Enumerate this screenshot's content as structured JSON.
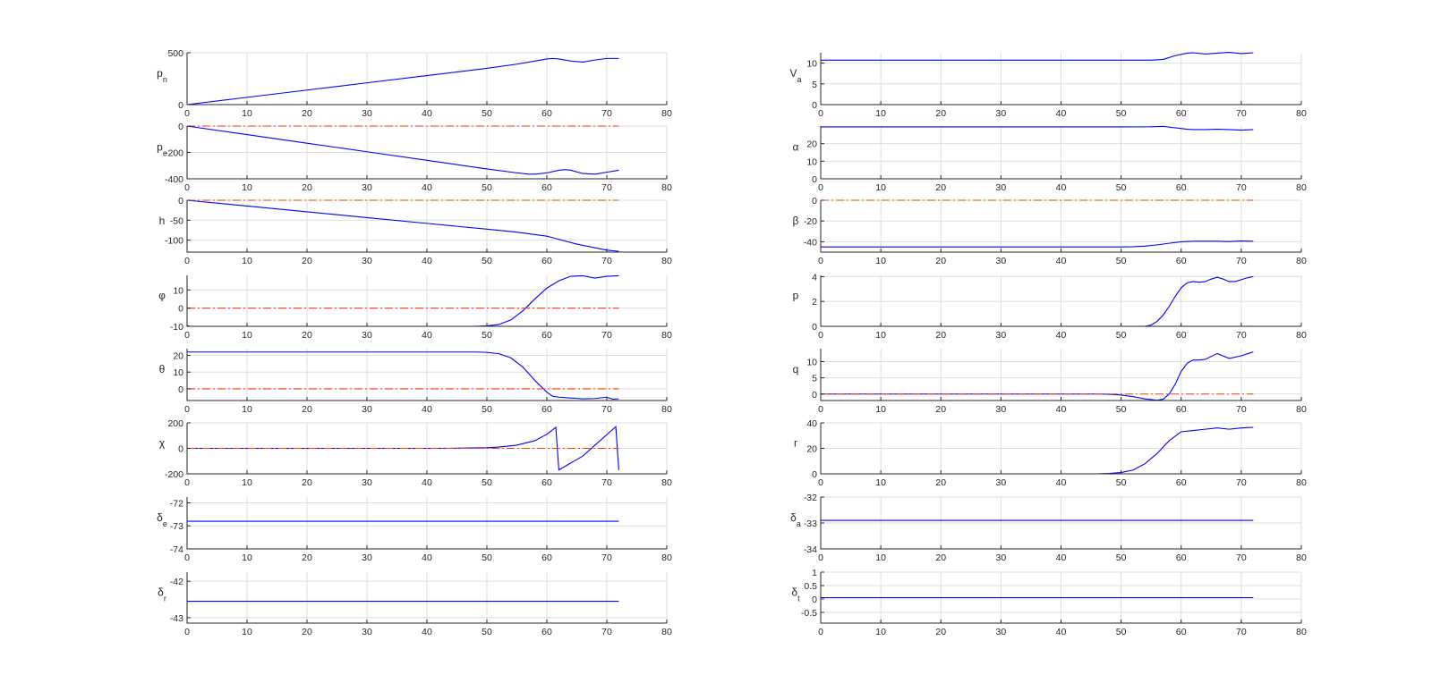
{
  "figure": {
    "background": "#ffffff"
  },
  "style": {
    "actual_color": "#0000ff",
    "commanded_color": "#ff3b00",
    "grid_color": "#dedede"
  },
  "chart_data": [
    {
      "type": "line",
      "ylabel": {
        "base": "p",
        "sub": "n"
      },
      "xlim": [
        0,
        80
      ],
      "ylim": [
        0,
        500
      ],
      "xticks": [
        0,
        10,
        20,
        30,
        40,
        50,
        60,
        70,
        80
      ],
      "yticks": [
        0,
        500
      ],
      "grid": true,
      "series": [
        {
          "style": "actual",
          "x": [
            0,
            10,
            20,
            30,
            40,
            50,
            55,
            58,
            60,
            61,
            62,
            64,
            66,
            68,
            70,
            72
          ],
          "y": [
            0,
            70,
            140,
            210,
            280,
            350,
            390,
            420,
            440,
            445,
            440,
            420,
            410,
            430,
            445,
            445
          ]
        },
        {
          "style": "commanded",
          "x": [
            0,
            72
          ],
          "y": [
            0,
            0
          ]
        }
      ]
    },
    {
      "type": "line",
      "ylabel": {
        "base": "p",
        "sub": "e"
      },
      "xlim": [
        0,
        80
      ],
      "ylim": [
        -400,
        0
      ],
      "xticks": [
        0,
        10,
        20,
        30,
        40,
        50,
        60,
        70,
        80
      ],
      "yticks": [
        -400,
        -200,
        0
      ],
      "ytick_labels": [
        "-400",
        "-200",
        "0"
      ],
      "grid": true,
      "series": [
        {
          "style": "actual",
          "x": [
            0,
            10,
            20,
            30,
            40,
            50,
            55,
            57,
            58,
            60,
            62,
            63,
            64,
            66,
            68,
            70,
            72
          ],
          "y": [
            0,
            -65,
            -130,
            -195,
            -260,
            -325,
            -355,
            -365,
            -365,
            -355,
            -335,
            -330,
            -335,
            -360,
            -365,
            -350,
            -335
          ]
        },
        {
          "style": "commanded",
          "x": [
            0,
            72
          ],
          "y": [
            0,
            0
          ]
        }
      ]
    },
    {
      "type": "line",
      "ylabel": {
        "base": "h",
        "sub": ""
      },
      "xlim": [
        0,
        80
      ],
      "ylim": [
        -130,
        0
      ],
      "xticks": [
        0,
        10,
        20,
        30,
        40,
        50,
        60,
        70,
        80
      ],
      "yticks": [
        -100,
        -50,
        0
      ],
      "ytick_labels": [
        "-100",
        "-50",
        "0"
      ],
      "grid": true,
      "series": [
        {
          "style": "actual",
          "x": [
            0,
            10,
            20,
            30,
            40,
            50,
            55,
            60,
            65,
            70,
            72
          ],
          "y": [
            0,
            -14.5,
            -29,
            -43.5,
            -58,
            -72.5,
            -80,
            -90,
            -110,
            -125,
            -128
          ]
        },
        {
          "style": "commanded",
          "x": [
            0,
            72
          ],
          "y": [
            0,
            0
          ]
        }
      ]
    },
    {
      "type": "line",
      "ylabel": {
        "base": "φ",
        "sub": ""
      },
      "xlim": [
        0,
        80
      ],
      "ylim": [
        -10,
        18
      ],
      "xticks": [
        0,
        10,
        20,
        30,
        40,
        50,
        60,
        70,
        80
      ],
      "yticks": [
        -10,
        0,
        10
      ],
      "ytick_labels": [
        "-10",
        "0",
        "10"
      ],
      "grid": true,
      "series": [
        {
          "style": "actual",
          "x": [
            0,
            0.4,
            1,
            10,
            20,
            30,
            40,
            48,
            50,
            52,
            54,
            56,
            58,
            60,
            62,
            64,
            66,
            68,
            70,
            72
          ],
          "y": [
            -9.6,
            -10,
            -10,
            -10,
            -10,
            -10,
            -10,
            -10,
            -9.8,
            -9,
            -6.5,
            -1.5,
            5,
            11,
            15,
            17.5,
            17.8,
            16.5,
            17.5,
            17.8
          ]
        },
        {
          "style": "commanded",
          "x": [
            0,
            72
          ],
          "y": [
            0,
            0
          ]
        }
      ]
    },
    {
      "type": "line",
      "ylabel": {
        "base": "θ",
        "sub": ""
      },
      "xlim": [
        0,
        80
      ],
      "ylim": [
        -7,
        24
      ],
      "xticks": [
        0,
        10,
        20,
        30,
        40,
        50,
        60,
        70,
        80
      ],
      "yticks": [
        0,
        10,
        20
      ],
      "grid": true,
      "series": [
        {
          "style": "actual",
          "x": [
            0,
            10,
            20,
            30,
            40,
            48,
            50,
            52,
            54,
            56,
            58,
            60,
            61,
            62,
            64,
            66,
            68,
            70,
            71,
            72
          ],
          "y": [
            22,
            22,
            22,
            22,
            22,
            22,
            21.8,
            21,
            18.5,
            13,
            5,
            -2,
            -4.5,
            -5,
            -5.5,
            -6,
            -5.8,
            -5,
            -6.2,
            -6
          ]
        },
        {
          "style": "commanded",
          "x": [
            0,
            72
          ],
          "y": [
            0,
            0
          ]
        }
      ]
    },
    {
      "type": "line",
      "ylabel": {
        "base": "χ",
        "sub": ""
      },
      "xlim": [
        0,
        80
      ],
      "ylim": [
        -200,
        200
      ],
      "xticks": [
        0,
        10,
        20,
        30,
        40,
        50,
        60,
        70,
        80
      ],
      "yticks": [
        -200,
        0,
        200
      ],
      "ytick_labels": [
        "-200",
        "0",
        "200"
      ],
      "grid": true,
      "series": [
        {
          "style": "actual",
          "x": [
            0,
            10,
            20,
            30,
            40,
            45,
            50,
            52,
            55,
            58,
            60,
            61.5,
            62,
            66,
            71.5,
            72
          ],
          "y": [
            0,
            0,
            0,
            0,
            0,
            1,
            5,
            10,
            25,
            60,
            110,
            165,
            -170,
            -60,
            170,
            -170
          ]
        },
        {
          "style": "commanded",
          "x": [
            0,
            72
          ],
          "y": [
            0,
            0
          ]
        }
      ]
    },
    {
      "type": "line",
      "ylabel": {
        "base": "δ",
        "sub": "e"
      },
      "xlim": [
        0,
        80
      ],
      "ylim": [
        -74,
        -71.75
      ],
      "xticks": [
        0,
        10,
        20,
        30,
        40,
        50,
        60,
        70,
        80
      ],
      "yticks": [
        -74,
        -73,
        -72
      ],
      "ytick_labels": [
        "-74",
        "-73",
        "-72"
      ],
      "grid": true,
      "series": [
        {
          "style": "actual",
          "x": [
            0,
            72
          ],
          "y": [
            -72.8,
            -72.8
          ]
        }
      ]
    },
    {
      "type": "line",
      "ylabel": {
        "base": "δ",
        "sub": "r"
      },
      "xlim": [
        0,
        80
      ],
      "ylim": [
        -43.15,
        -41.75
      ],
      "xticks": [
        0,
        10,
        20,
        30,
        40,
        50,
        60,
        70,
        80
      ],
      "yticks": [
        -43,
        -42
      ],
      "ytick_labels": [
        "-43",
        "-42"
      ],
      "grid": true,
      "series": [
        {
          "style": "actual",
          "x": [
            0,
            72
          ],
          "y": [
            -42.55,
            -42.55
          ]
        }
      ]
    },
    {
      "type": "line",
      "ylabel": {
        "base": "V",
        "sub": "a"
      },
      "xlim": [
        0,
        80
      ],
      "ylim": [
        0,
        12.5
      ],
      "xticks": [
        0,
        10,
        20,
        30,
        40,
        50,
        60,
        70,
        80
      ],
      "yticks": [
        0,
        5,
        10
      ],
      "grid": true,
      "series": [
        {
          "style": "actual",
          "x": [
            0,
            10,
            20,
            30,
            40,
            50,
            55,
            57,
            59,
            61,
            62,
            64,
            66,
            68,
            70,
            72
          ],
          "y": [
            10.7,
            10.7,
            10.7,
            10.7,
            10.7,
            10.7,
            10.7,
            10.9,
            11.8,
            12.4,
            12.5,
            12.2,
            12.4,
            12.6,
            12.3,
            12.5
          ]
        },
        {
          "style": "commanded",
          "x": [
            0,
            72
          ],
          "y": [
            0,
            0
          ]
        }
      ]
    },
    {
      "type": "line",
      "ylabel": {
        "base": "α",
        "sub": ""
      },
      "xlim": [
        0,
        80
      ],
      "ylim": [
        0,
        30
      ],
      "xticks": [
        0,
        10,
        20,
        30,
        40,
        50,
        60,
        70,
        80
      ],
      "yticks": [
        0,
        10,
        20
      ],
      "grid": true,
      "series": [
        {
          "style": "actual",
          "x": [
            0,
            10,
            20,
            30,
            40,
            50,
            55,
            57,
            59,
            61,
            62,
            64,
            66,
            68,
            70,
            72
          ],
          "y": [
            29.5,
            29.5,
            29.5,
            29.5,
            29.5,
            29.5,
            29.6,
            29.8,
            29,
            28.2,
            28,
            28,
            28.2,
            28,
            27.7,
            28
          ]
        },
        {
          "style": "commanded",
          "x": [
            0,
            72
          ],
          "y": [
            0,
            0
          ]
        }
      ]
    },
    {
      "type": "line",
      "ylabel": {
        "base": "β",
        "sub": ""
      },
      "xlim": [
        0,
        80
      ],
      "ylim": [
        -50,
        0
      ],
      "xticks": [
        0,
        10,
        20,
        30,
        40,
        50,
        60,
        70,
        80
      ],
      "yticks": [
        -40,
        -20,
        0
      ],
      "ytick_labels": [
        "-40",
        "-20",
        "0"
      ],
      "grid": true,
      "series": [
        {
          "style": "actual",
          "x": [
            0,
            10,
            20,
            30,
            40,
            50,
            52,
            54,
            56,
            58,
            60,
            62,
            66,
            68,
            70,
            72
          ],
          "y": [
            -45,
            -45,
            -45,
            -45,
            -45,
            -45,
            -44.8,
            -44.2,
            -43,
            -41.5,
            -40,
            -39.5,
            -39.5,
            -39.8,
            -39.3,
            -39.5
          ]
        },
        {
          "style": "commanded",
          "x": [
            0,
            72
          ],
          "y": [
            0,
            0
          ]
        }
      ]
    },
    {
      "type": "line",
      "ylabel": {
        "base": "p",
        "sub": ""
      },
      "xlim": [
        0,
        80
      ],
      "ylim": [
        0,
        4.1
      ],
      "xticks": [
        0,
        10,
        20,
        30,
        40,
        50,
        60,
        70,
        80
      ],
      "yticks": [
        0,
        2,
        4
      ],
      "grid": true,
      "series": [
        {
          "style": "actual",
          "x": [
            0,
            10,
            20,
            30,
            40,
            50,
            54,
            55,
            56,
            57,
            58,
            59,
            60,
            61,
            62,
            63,
            64,
            65,
            66,
            67,
            68,
            69,
            70,
            71,
            72
          ],
          "y": [
            0,
            0,
            0,
            0,
            0,
            0,
            0,
            0.1,
            0.4,
            0.9,
            1.6,
            2.4,
            3.1,
            3.5,
            3.6,
            3.55,
            3.6,
            3.8,
            3.95,
            3.8,
            3.6,
            3.6,
            3.75,
            3.9,
            4
          ]
        },
        {
          "style": "commanded",
          "x": [
            0,
            72
          ],
          "y": [
            0,
            0
          ]
        }
      ]
    },
    {
      "type": "line",
      "ylabel": {
        "base": "q",
        "sub": ""
      },
      "xlim": [
        0,
        80
      ],
      "ylim": [
        -2,
        14
      ],
      "xticks": [
        0,
        10,
        20,
        30,
        40,
        50,
        60,
        70,
        80
      ],
      "yticks": [
        0,
        5,
        10
      ],
      "grid": true,
      "series": [
        {
          "style": "actual",
          "x": [
            0,
            10,
            20,
            30,
            40,
            46,
            48,
            50,
            52,
            54,
            56,
            57,
            58,
            59,
            60,
            61,
            62,
            63,
            64,
            66,
            68,
            70,
            72
          ],
          "y": [
            0,
            0,
            0,
            0,
            0,
            0,
            -0.1,
            -0.3,
            -0.8,
            -1.5,
            -1.9,
            -1.6,
            0,
            3,
            7,
            9.5,
            10.5,
            10.5,
            10.7,
            12.5,
            11,
            11.8,
            13
          ]
        },
        {
          "style": "commanded",
          "x": [
            0,
            72
          ],
          "y": [
            0,
            0
          ]
        }
      ]
    },
    {
      "type": "line",
      "ylabel": {
        "base": "r",
        "sub": ""
      },
      "xlim": [
        0,
        80
      ],
      "ylim": [
        0,
        40
      ],
      "xticks": [
        0,
        10,
        20,
        30,
        40,
        50,
        60,
        70,
        80
      ],
      "yticks": [
        0,
        20,
        40
      ],
      "grid": true,
      "series": [
        {
          "style": "actual",
          "x": [
            0,
            10,
            20,
            30,
            40,
            46,
            48,
            50,
            52,
            54,
            56,
            58,
            60,
            62,
            64,
            66,
            68,
            70,
            72
          ],
          "y": [
            0,
            0,
            0,
            0,
            0,
            0,
            0.3,
            1,
            3,
            8,
            16,
            26,
            33,
            34,
            35,
            36,
            35,
            36,
            36.5
          ]
        },
        {
          "style": "commanded",
          "x": [
            0,
            72
          ],
          "y": [
            0,
            0
          ]
        }
      ]
    },
    {
      "type": "line",
      "ylabel": {
        "base": "δ",
        "sub": "a"
      },
      "xlim": [
        0,
        80
      ],
      "ylim": [
        -34,
        -32
      ],
      "xticks": [
        0,
        10,
        20,
        30,
        40,
        50,
        60,
        70,
        80
      ],
      "yticks": [
        -34,
        -33,
        -32
      ],
      "ytick_labels": [
        "-34",
        "-33",
        "-32"
      ],
      "grid": true,
      "series": [
        {
          "style": "actual",
          "x": [
            0,
            72
          ],
          "y": [
            -32.9,
            -32.9
          ]
        }
      ]
    },
    {
      "type": "line",
      "ylabel": {
        "base": "δ",
        "sub": "t"
      },
      "xlim": [
        0,
        80
      ],
      "ylim": [
        -0.9,
        1.0
      ],
      "xticks": [
        0,
        10,
        20,
        30,
        40,
        50,
        60,
        70,
        80
      ],
      "yticks": [
        -0.5,
        0,
        0.5,
        1
      ],
      "ytick_labels": [
        "-0.5",
        "0",
        "0.5",
        "1"
      ],
      "grid": true,
      "series": [
        {
          "style": "actual",
          "x": [
            0,
            72
          ],
          "y": [
            0.05,
            0.05
          ]
        }
      ]
    }
  ]
}
